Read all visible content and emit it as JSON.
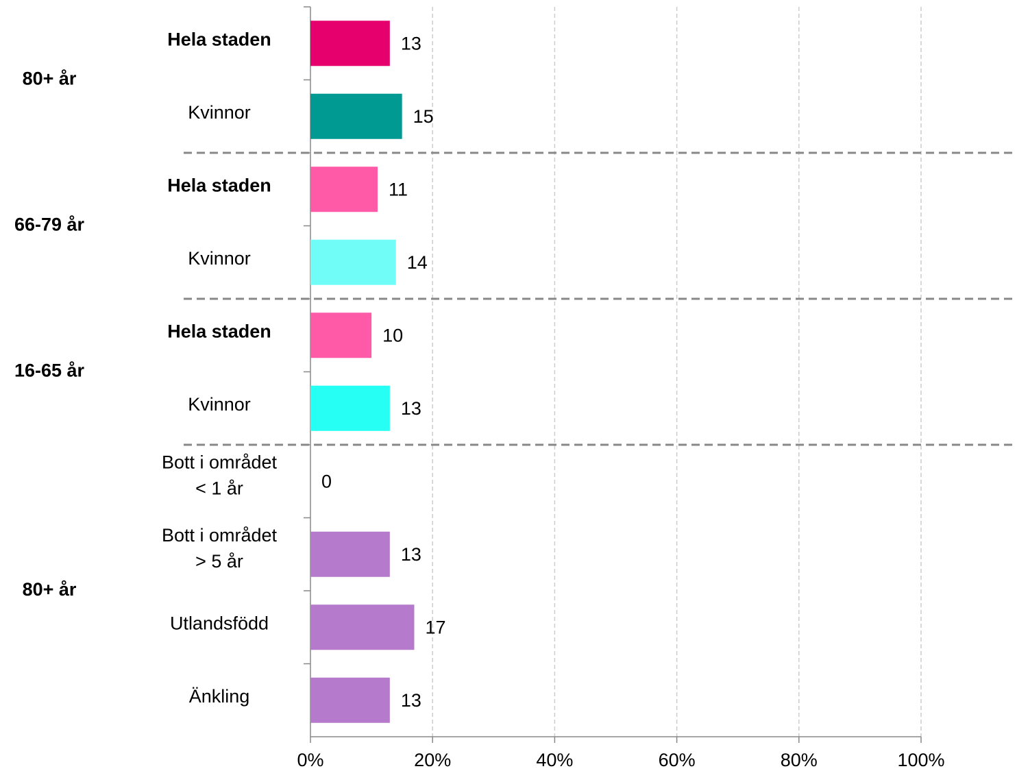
{
  "chart_data": {
    "type": "bar",
    "orientation": "horizontal",
    "xlim": [
      0,
      100
    ],
    "xticks": [
      {
        "value": 0,
        "label": "0%"
      },
      {
        "value": 20,
        "label": "20%"
      },
      {
        "value": 40,
        "label": "40%"
      },
      {
        "value": 60,
        "label": "60%"
      },
      {
        "value": 80,
        "label": "80%"
      },
      {
        "value": 100,
        "label": "100%"
      }
    ],
    "grid": true,
    "groups": [
      {
        "label": "80+ år",
        "items": [
          {
            "category": "Hela staden",
            "bold": true,
            "value": 13,
            "color": "#e6006e"
          },
          {
            "category": "Kvinnor",
            "bold": false,
            "value": 15,
            "color": "#009a93"
          }
        ]
      },
      {
        "label": "66-79 år",
        "items": [
          {
            "category": "Hela staden",
            "bold": true,
            "value": 11,
            "color": "#ff5aa8"
          },
          {
            "category": "Kvinnor",
            "bold": false,
            "value": 14,
            "color": "#70fdf8"
          }
        ]
      },
      {
        "label": "16-65 år",
        "items": [
          {
            "category": "Hela staden",
            "bold": true,
            "value": 10,
            "color": "#ff5aa8"
          },
          {
            "category": "Kvinnor",
            "bold": false,
            "value": 13,
            "color": "#26fff4"
          }
        ]
      },
      {
        "label": "80+ år",
        "items": [
          {
            "category": [
              "Bott i området",
              "< 1 år"
            ],
            "bold": false,
            "value": 0,
            "color": "#b57acb"
          },
          {
            "category": [
              "Bott i området",
              "> 5 år"
            ],
            "bold": false,
            "value": 13,
            "color": "#b57acb"
          },
          {
            "category": "Utlandsfödd",
            "bold": false,
            "value": 17,
            "color": "#b57acb"
          },
          {
            "category": "Änkling",
            "bold": false,
            "value": 13,
            "color": "#b57acb"
          }
        ]
      }
    ]
  }
}
